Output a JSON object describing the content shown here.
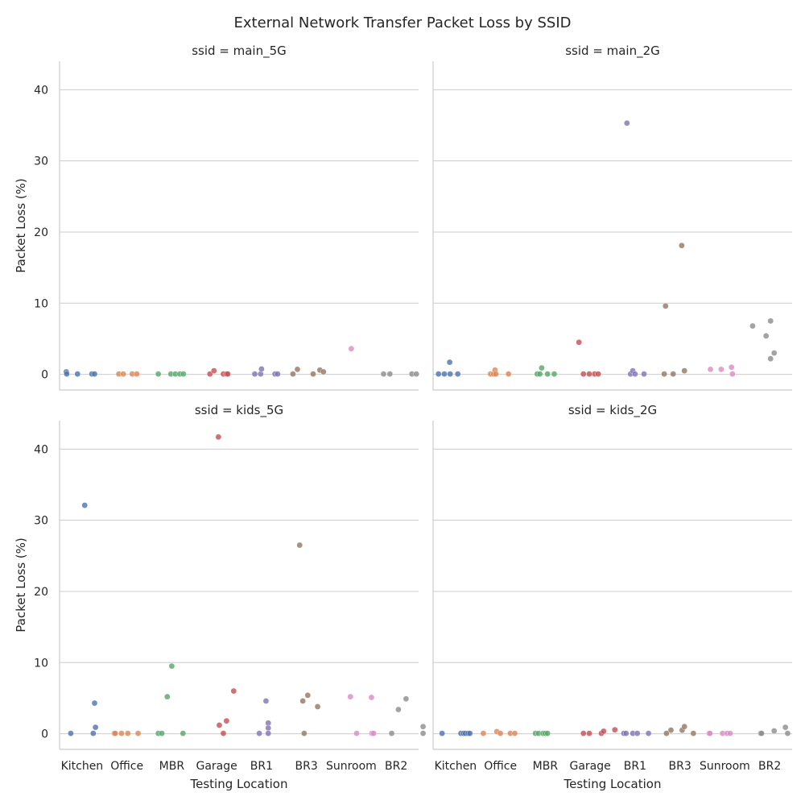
{
  "chart_data": {
    "type": "scatter",
    "title": "External Network Transfer Packet Loss by SSID",
    "xlabel": "Testing Location",
    "ylabel": "Packet Loss (%)",
    "ylim": [
      -2.2,
      44
    ],
    "yticks": [
      0,
      10,
      20,
      30,
      40
    ],
    "grid": "horizontal",
    "categories": [
      "Kitchen",
      "Office",
      "MBR",
      "Garage",
      "BR1",
      "BR3",
      "Sunroom",
      "BR2"
    ],
    "category_colors": [
      "#4c72b0",
      "#dd8452",
      "#55a868",
      "#c44e52",
      "#8172b3",
      "#937860",
      "#da8bc3",
      "#8c8c8c"
    ],
    "panels": [
      {
        "facet_title": "ssid = main_5G",
        "points": [
          {
            "category": "Kitchen",
            "offset": -0.35,
            "value": 0.35
          },
          {
            "category": "Kitchen",
            "offset": -0.34,
            "value": 0.05
          },
          {
            "category": "Kitchen",
            "offset": -0.1,
            "value": 0.05
          },
          {
            "category": "Kitchen",
            "offset": 0.22,
            "value": 0.05
          },
          {
            "category": "Kitchen",
            "offset": 0.28,
            "value": 0.05
          },
          {
            "category": "Office",
            "offset": -0.18,
            "value": 0.05
          },
          {
            "category": "Office",
            "offset": -0.08,
            "value": 0.05
          },
          {
            "category": "Office",
            "offset": 0.12,
            "value": 0.05
          },
          {
            "category": "Office",
            "offset": 0.22,
            "value": 0.05
          },
          {
            "category": "MBR",
            "offset": -0.3,
            "value": 0.05
          },
          {
            "category": "MBR",
            "offset": -0.02,
            "value": 0.05
          },
          {
            "category": "MBR",
            "offset": 0.08,
            "value": 0.05
          },
          {
            "category": "MBR",
            "offset": 0.18,
            "value": 0.05
          },
          {
            "category": "MBR",
            "offset": 0.26,
            "value": 0.05
          },
          {
            "category": "Garage",
            "offset": -0.15,
            "value": 0.05
          },
          {
            "category": "Garage",
            "offset": -0.06,
            "value": 0.5
          },
          {
            "category": "Garage",
            "offset": 0.15,
            "value": 0.05
          },
          {
            "category": "Garage",
            "offset": 0.22,
            "value": 0.05
          },
          {
            "category": "Garage",
            "offset": 0.25,
            "value": 0.05
          },
          {
            "category": "BR1",
            "offset": -0.15,
            "value": 0.05
          },
          {
            "category": "BR1",
            "offset": -0.02,
            "value": 0.05
          },
          {
            "category": "BR1",
            "offset": 0.0,
            "value": 0.75
          },
          {
            "category": "BR1",
            "offset": 0.3,
            "value": 0.05
          },
          {
            "category": "BR1",
            "offset": 0.36,
            "value": 0.05
          },
          {
            "category": "BR3",
            "offset": -0.3,
            "value": 0.05
          },
          {
            "category": "BR3",
            "offset": -0.2,
            "value": 0.7
          },
          {
            "category": "BR3",
            "offset": 0.15,
            "value": 0.05
          },
          {
            "category": "BR3",
            "offset": 0.3,
            "value": 0.6
          },
          {
            "category": "BR3",
            "offset": 0.38,
            "value": 0.35
          },
          {
            "category": "Sunroom",
            "offset": 0.0,
            "value": 3.6
          },
          {
            "category": "BR2",
            "offset": -0.28,
            "value": 0.05
          },
          {
            "category": "BR2",
            "offset": -0.14,
            "value": 0.05
          },
          {
            "category": "BR2",
            "offset": 0.35,
            "value": 0.05
          },
          {
            "category": "BR2",
            "offset": 0.45,
            "value": 0.05
          }
        ]
      },
      {
        "facet_title": "ssid = main_2G",
        "points": [
          {
            "category": "Kitchen",
            "offset": -0.38,
            "value": 0.05
          },
          {
            "category": "Kitchen",
            "offset": -0.25,
            "value": 0.05
          },
          {
            "category": "Kitchen",
            "offset": -0.13,
            "value": 1.7
          },
          {
            "category": "Kitchen",
            "offset": -0.12,
            "value": 0.05
          },
          {
            "category": "Kitchen",
            "offset": 0.05,
            "value": 0.05
          },
          {
            "category": "Office",
            "offset": -0.22,
            "value": 0.05
          },
          {
            "category": "Office",
            "offset": -0.15,
            "value": 0.05
          },
          {
            "category": "Office",
            "offset": -0.12,
            "value": 0.6
          },
          {
            "category": "Office",
            "offset": -0.1,
            "value": 0.05
          },
          {
            "category": "Office",
            "offset": 0.18,
            "value": 0.05
          },
          {
            "category": "MBR",
            "offset": -0.18,
            "value": 0.05
          },
          {
            "category": "MBR",
            "offset": -0.12,
            "value": 0.05
          },
          {
            "category": "MBR",
            "offset": -0.08,
            "value": 0.9
          },
          {
            "category": "MBR",
            "offset": 0.05,
            "value": 0.05
          },
          {
            "category": "MBR",
            "offset": 0.2,
            "value": 0.05
          },
          {
            "category": "Garage",
            "offset": -0.25,
            "value": 4.5
          },
          {
            "category": "Garage",
            "offset": -0.15,
            "value": 0.05
          },
          {
            "category": "Garage",
            "offset": -0.02,
            "value": 0.05
          },
          {
            "category": "Garage",
            "offset": 0.1,
            "value": 0.05
          },
          {
            "category": "Garage",
            "offset": 0.18,
            "value": 0.05
          },
          {
            "category": "BR1",
            "offset": -0.18,
            "value": 35.3
          },
          {
            "category": "BR1",
            "offset": -0.1,
            "value": 0.05
          },
          {
            "category": "BR1",
            "offset": -0.05,
            "value": 0.5
          },
          {
            "category": "BR1",
            "offset": 0.0,
            "value": 0.05
          },
          {
            "category": "BR1",
            "offset": 0.2,
            "value": 0.05
          },
          {
            "category": "BR3",
            "offset": -0.32,
            "value": 9.6
          },
          {
            "category": "BR3",
            "offset": -0.35,
            "value": 0.05
          },
          {
            "category": "BR3",
            "offset": -0.15,
            "value": 0.05
          },
          {
            "category": "BR3",
            "offset": 0.04,
            "value": 18.1
          },
          {
            "category": "BR3",
            "offset": 0.1,
            "value": 0.5
          },
          {
            "category": "Sunroom",
            "offset": -0.32,
            "value": 0.7
          },
          {
            "category": "Sunroom",
            "offset": -0.08,
            "value": 0.7
          },
          {
            "category": "Sunroom",
            "offset": 0.15,
            "value": 1.0
          },
          {
            "category": "Sunroom",
            "offset": 0.17,
            "value": 0.05
          },
          {
            "category": "BR2",
            "offset": -0.38,
            "value": 6.8
          },
          {
            "category": "BR2",
            "offset": -0.08,
            "value": 5.4
          },
          {
            "category": "BR2",
            "offset": 0.02,
            "value": 7.5
          },
          {
            "category": "BR2",
            "offset": 0.02,
            "value": 2.2
          },
          {
            "category": "BR2",
            "offset": 0.1,
            "value": 3.0
          }
        ]
      },
      {
        "facet_title": "ssid = kids_5G",
        "points": [
          {
            "category": "Kitchen",
            "offset": -0.25,
            "value": 0.05
          },
          {
            "category": "Kitchen",
            "offset": 0.06,
            "value": 32.1
          },
          {
            "category": "Kitchen",
            "offset": 0.25,
            "value": 0.05
          },
          {
            "category": "Kitchen",
            "offset": 0.28,
            "value": 4.3
          },
          {
            "category": "Kitchen",
            "offset": 0.3,
            "value": 0.9
          },
          {
            "category": "Office",
            "offset": -0.28,
            "value": 0.05
          },
          {
            "category": "Office",
            "offset": -0.26,
            "value": 0.05
          },
          {
            "category": "Office",
            "offset": -0.12,
            "value": 0.05
          },
          {
            "category": "Office",
            "offset": 0.02,
            "value": 0.05
          },
          {
            "category": "Office",
            "offset": 0.25,
            "value": 0.05
          },
          {
            "category": "MBR",
            "offset": -0.3,
            "value": 0.05
          },
          {
            "category": "MBR",
            "offset": -0.22,
            "value": 0.05
          },
          {
            "category": "MBR",
            "offset": -0.1,
            "value": 5.2
          },
          {
            "category": "MBR",
            "offset": 0.0,
            "value": 9.5
          },
          {
            "category": "MBR",
            "offset": 0.25,
            "value": 0.05
          },
          {
            "category": "Garage",
            "offset": 0.04,
            "value": 41.7
          },
          {
            "category": "Garage",
            "offset": 0.06,
            "value": 1.2
          },
          {
            "category": "Garage",
            "offset": 0.15,
            "value": 0.05
          },
          {
            "category": "Garage",
            "offset": 0.22,
            "value": 1.8
          },
          {
            "category": "Garage",
            "offset": 0.38,
            "value": 6.0
          },
          {
            "category": "BR1",
            "offset": -0.05,
            "value": 0.05
          },
          {
            "category": "BR1",
            "offset": 0.1,
            "value": 4.6
          },
          {
            "category": "BR1",
            "offset": 0.15,
            "value": 1.5
          },
          {
            "category": "BR1",
            "offset": 0.15,
            "value": 0.8
          },
          {
            "category": "BR1",
            "offset": 0.15,
            "value": 0.05
          },
          {
            "category": "BR3",
            "offset": -0.15,
            "value": 26.5
          },
          {
            "category": "BR3",
            "offset": -0.08,
            "value": 4.6
          },
          {
            "category": "BR3",
            "offset": -0.05,
            "value": 0.05
          },
          {
            "category": "BR3",
            "offset": 0.03,
            "value": 5.4
          },
          {
            "category": "BR3",
            "offset": 0.25,
            "value": 3.8
          },
          {
            "category": "Sunroom",
            "offset": -0.02,
            "value": 5.2
          },
          {
            "category": "Sunroom",
            "offset": 0.12,
            "value": 0.05
          },
          {
            "category": "Sunroom",
            "offset": 0.45,
            "value": 5.1
          },
          {
            "category": "Sunroom",
            "offset": 0.46,
            "value": 0.05
          },
          {
            "category": "Sunroom",
            "offset": 0.5,
            "value": 0.05
          },
          {
            "category": "BR2",
            "offset": -0.1,
            "value": 0.05
          },
          {
            "category": "BR2",
            "offset": 0.05,
            "value": 3.4
          },
          {
            "category": "BR2",
            "offset": 0.22,
            "value": 4.9
          },
          {
            "category": "BR2",
            "offset": 0.6,
            "value": 1.0
          },
          {
            "category": "BR2",
            "offset": 0.6,
            "value": 0.05
          }
        ]
      },
      {
        "facet_title": "ssid = kids_2G",
        "points": [
          {
            "category": "Kitchen",
            "offset": -0.3,
            "value": 0.05
          },
          {
            "category": "Kitchen",
            "offset": 0.12,
            "value": 0.05
          },
          {
            "category": "Kitchen",
            "offset": 0.18,
            "value": 0.05
          },
          {
            "category": "Kitchen",
            "offset": 0.22,
            "value": 0.05
          },
          {
            "category": "Kitchen",
            "offset": 0.28,
            "value": 0.05
          },
          {
            "category": "Kitchen",
            "offset": 0.32,
            "value": 0.05
          },
          {
            "category": "Office",
            "offset": -0.38,
            "value": 0.05
          },
          {
            "category": "Office",
            "offset": -0.08,
            "value": 0.3
          },
          {
            "category": "Office",
            "offset": 0.0,
            "value": 0.05
          },
          {
            "category": "Office",
            "offset": 0.22,
            "value": 0.05
          },
          {
            "category": "Office",
            "offset": 0.32,
            "value": 0.05
          },
          {
            "category": "MBR",
            "offset": -0.22,
            "value": 0.05
          },
          {
            "category": "MBR",
            "offset": -0.15,
            "value": 0.05
          },
          {
            "category": "MBR",
            "offset": -0.05,
            "value": 0.05
          },
          {
            "category": "MBR",
            "offset": 0.0,
            "value": 0.05
          },
          {
            "category": "MBR",
            "offset": 0.05,
            "value": 0.05
          },
          {
            "category": "Garage",
            "offset": -0.15,
            "value": 0.05
          },
          {
            "category": "Garage",
            "offset": -0.02,
            "value": 0.05
          },
          {
            "category": "Garage",
            "offset": 0.25,
            "value": 0.05
          },
          {
            "category": "Garage",
            "offset": 0.3,
            "value": 0.35
          },
          {
            "category": "Garage",
            "offset": 0.55,
            "value": 0.55
          },
          {
            "category": "BR1",
            "offset": -0.25,
            "value": 0.05
          },
          {
            "category": "BR1",
            "offset": -0.2,
            "value": 0.05
          },
          {
            "category": "BR1",
            "offset": -0.05,
            "value": 0.05
          },
          {
            "category": "BR1",
            "offset": 0.05,
            "value": 0.05
          },
          {
            "category": "BR1",
            "offset": 0.3,
            "value": 0.05
          },
          {
            "category": "BR3",
            "offset": -0.3,
            "value": 0.05
          },
          {
            "category": "BR3",
            "offset": -0.2,
            "value": 0.5
          },
          {
            "category": "BR3",
            "offset": 0.05,
            "value": 0.5
          },
          {
            "category": "BR3",
            "offset": 0.1,
            "value": 1.0
          },
          {
            "category": "BR3",
            "offset": 0.3,
            "value": 0.05
          },
          {
            "category": "Sunroom",
            "offset": -0.35,
            "value": 0.05
          },
          {
            "category": "Sunroom",
            "offset": -0.33,
            "value": 0.05
          },
          {
            "category": "Sunroom",
            "offset": -0.05,
            "value": 0.05
          },
          {
            "category": "Sunroom",
            "offset": 0.05,
            "value": 0.05
          },
          {
            "category": "Sunroom",
            "offset": 0.12,
            "value": 0.05
          },
          {
            "category": "BR2",
            "offset": -0.2,
            "value": 0.05
          },
          {
            "category": "BR2",
            "offset": -0.18,
            "value": 0.05
          },
          {
            "category": "BR2",
            "offset": 0.1,
            "value": 0.4
          },
          {
            "category": "BR2",
            "offset": 0.35,
            "value": 0.9
          },
          {
            "category": "BR2",
            "offset": 0.4,
            "value": 0.05
          }
        ]
      }
    ]
  }
}
